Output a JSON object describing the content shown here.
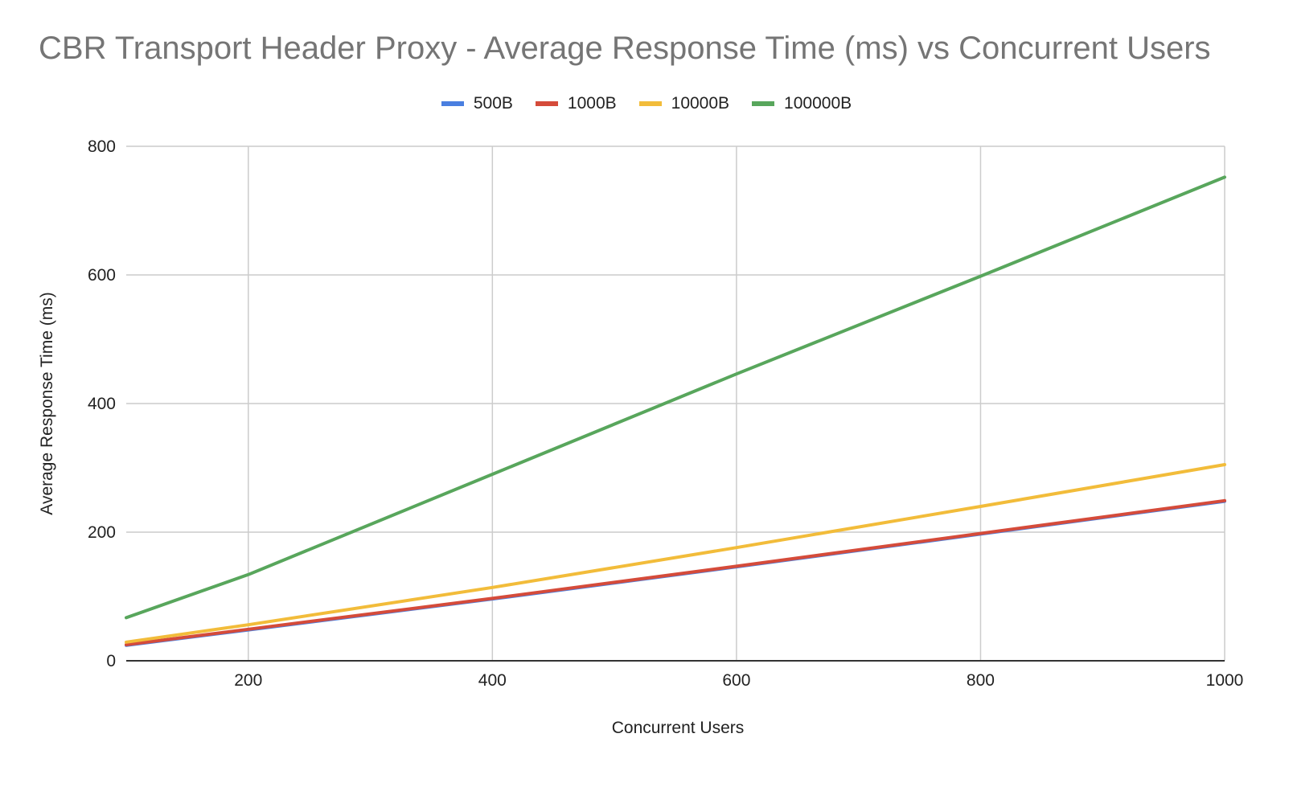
{
  "chart_data": {
    "type": "line",
    "title": "CBR Transport Header Proxy - Average Response Time (ms) vs Concurrent Users",
    "xlabel": "Concurrent Users",
    "ylabel": "Average Response Time (ms)",
    "xlim": [
      100,
      1000
    ],
    "ylim": [
      0,
      800
    ],
    "x_ticks": [
      200,
      400,
      600,
      800,
      1000
    ],
    "y_ticks": [
      0,
      200,
      400,
      600,
      800
    ],
    "grid": true,
    "legend_position": "top-center",
    "series": [
      {
        "name": "500B",
        "color": "#4a7fe0",
        "points": [
          [
            100,
            24
          ],
          [
            200,
            48
          ],
          [
            400,
            96
          ],
          [
            600,
            146
          ],
          [
            800,
            197
          ],
          [
            1000,
            248
          ]
        ]
      },
      {
        "name": "1000B",
        "color": "#d54b3a",
        "points": [
          [
            100,
            25
          ],
          [
            200,
            49
          ],
          [
            400,
            97
          ],
          [
            600,
            147
          ],
          [
            800,
            198
          ],
          [
            1000,
            249
          ]
        ]
      },
      {
        "name": "10000B",
        "color": "#f2bc3a",
        "points": [
          [
            100,
            29
          ],
          [
            200,
            56
          ],
          [
            400,
            114
          ],
          [
            600,
            176
          ],
          [
            800,
            240
          ],
          [
            1000,
            305
          ]
        ]
      },
      {
        "name": "100000B",
        "color": "#58a65c",
        "points": [
          [
            100,
            67
          ],
          [
            200,
            134
          ],
          [
            400,
            290
          ],
          [
            600,
            446
          ],
          [
            800,
            598
          ],
          [
            1000,
            752
          ]
        ]
      }
    ]
  }
}
